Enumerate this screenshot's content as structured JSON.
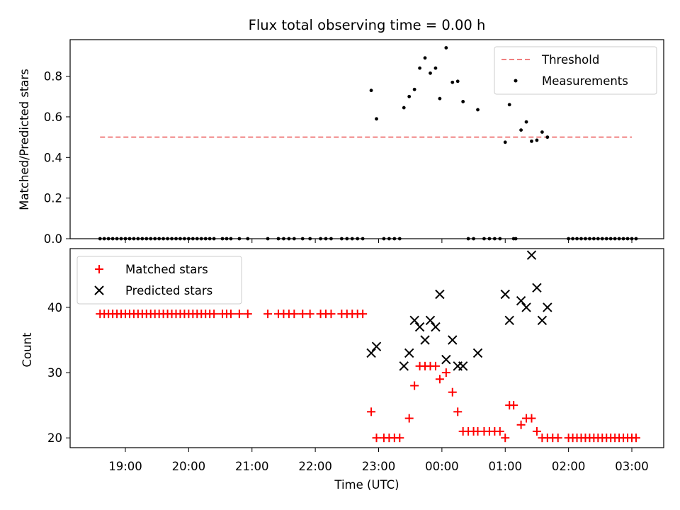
{
  "chart_data": [
    {
      "type": "scatter",
      "title": "Flux total observing time = 0.00 h",
      "xlabel": "",
      "ylabel": "Matched/Predicted stars",
      "ylim": [
        0,
        0.98
      ],
      "yticks": [
        0.0,
        0.2,
        0.4,
        0.6,
        0.8
      ],
      "ytick_labels": [
        "0.0",
        "0.2",
        "0.4",
        "0.6",
        "0.8"
      ],
      "legend_position": "top-right",
      "threshold": {
        "name": "Threshold",
        "value": 0.5,
        "x_start": "18:36",
        "x_end": "03:00",
        "color": "#f08080"
      },
      "measurements": {
        "name": "Measurements",
        "color": "#000000",
        "points": [
          [
            "18:36",
            0
          ],
          [
            "18:40",
            0
          ],
          [
            "18:44",
            0
          ],
          [
            "18:48",
            0
          ],
          [
            "18:52",
            0
          ],
          [
            "18:56",
            0
          ],
          [
            "19:00",
            0
          ],
          [
            "19:04",
            0
          ],
          [
            "19:08",
            0
          ],
          [
            "19:12",
            0
          ],
          [
            "19:16",
            0
          ],
          [
            "19:20",
            0
          ],
          [
            "19:24",
            0
          ],
          [
            "19:28",
            0
          ],
          [
            "19:32",
            0
          ],
          [
            "19:36",
            0
          ],
          [
            "19:40",
            0
          ],
          [
            "19:44",
            0
          ],
          [
            "19:48",
            0
          ],
          [
            "19:52",
            0
          ],
          [
            "19:56",
            0
          ],
          [
            "20:00",
            0
          ],
          [
            "20:04",
            0
          ],
          [
            "20:08",
            0
          ],
          [
            "20:12",
            0
          ],
          [
            "20:16",
            0
          ],
          [
            "20:20",
            0
          ],
          [
            "20:24",
            0
          ],
          [
            "20:32",
            0
          ],
          [
            "20:36",
            0
          ],
          [
            "20:40",
            0
          ],
          [
            "20:48",
            0
          ],
          [
            "20:56",
            0
          ],
          [
            "21:15",
            0
          ],
          [
            "21:25",
            0
          ],
          [
            "21:30",
            0
          ],
          [
            "21:35",
            0
          ],
          [
            "21:40",
            0
          ],
          [
            "21:48",
            0
          ],
          [
            "21:55",
            0
          ],
          [
            "22:05",
            0
          ],
          [
            "22:10",
            0
          ],
          [
            "22:15",
            0
          ],
          [
            "22:25",
            0
          ],
          [
            "22:30",
            0
          ],
          [
            "22:35",
            0
          ],
          [
            "22:40",
            0
          ],
          [
            "22:45",
            0
          ],
          [
            "22:53",
            0.73
          ],
          [
            "22:58",
            0.59
          ],
          [
            "23:05",
            0
          ],
          [
            "23:10",
            0
          ],
          [
            "23:15",
            0
          ],
          [
            "23:20",
            0
          ],
          [
            "23:24",
            0.645
          ],
          [
            "23:29",
            0.7
          ],
          [
            "23:34",
            0.735
          ],
          [
            "23:39",
            0.84
          ],
          [
            "23:44",
            0.89
          ],
          [
            "23:49",
            0.815
          ],
          [
            "23:54",
            0.84
          ],
          [
            "23:58",
            0.69
          ],
          [
            "00:04",
            0.94
          ],
          [
            "00:10",
            0.77
          ],
          [
            "00:15",
            0.775
          ],
          [
            "00:20",
            0.675
          ],
          [
            "00:25",
            0
          ],
          [
            "00:30",
            0
          ],
          [
            "00:34",
            0.635
          ],
          [
            "00:40",
            0
          ],
          [
            "00:45",
            0
          ],
          [
            "00:50",
            0
          ],
          [
            "00:55",
            0
          ],
          [
            "01:00",
            0.475
          ],
          [
            "01:04",
            0.66
          ],
          [
            "01:08",
            0
          ],
          [
            "01:10",
            0
          ],
          [
            "01:15",
            0.535
          ],
          [
            "01:20",
            0.575
          ],
          [
            "01:25",
            0.48
          ],
          [
            "01:30",
            0.485
          ],
          [
            "01:35",
            0.525
          ],
          [
            "01:40",
            0.5
          ],
          [
            "02:00",
            0
          ],
          [
            "02:04",
            0
          ],
          [
            "02:08",
            0
          ],
          [
            "02:12",
            0
          ],
          [
            "02:16",
            0
          ],
          [
            "02:20",
            0
          ],
          [
            "02:24",
            0
          ],
          [
            "02:28",
            0
          ],
          [
            "02:32",
            0
          ],
          [
            "02:36",
            0
          ],
          [
            "02:40",
            0
          ],
          [
            "02:44",
            0
          ],
          [
            "02:48",
            0
          ],
          [
            "02:52",
            0
          ],
          [
            "02:56",
            0
          ],
          [
            "03:00",
            0
          ],
          [
            "03:04",
            0
          ]
        ]
      }
    },
    {
      "type": "scatter",
      "title": "",
      "xlabel": "Time (UTC)",
      "ylabel": "Count",
      "ylim": [
        18.5,
        49
      ],
      "yticks": [
        20,
        30,
        40
      ],
      "ytick_labels": [
        "20",
        "30",
        "40"
      ],
      "xtick_labels": [
        "19:00",
        "20:00",
        "21:00",
        "22:00",
        "23:00",
        "00:00",
        "01:00",
        "02:00",
        "03:00"
      ],
      "legend_position": "top-left",
      "series": [
        {
          "name": "Matched stars",
          "marker": "plus",
          "color": "#ff0000",
          "points": [
            [
              "18:36",
              39
            ],
            [
              "18:40",
              39
            ],
            [
              "18:44",
              39
            ],
            [
              "18:48",
              39
            ],
            [
              "18:52",
              39
            ],
            [
              "18:56",
              39
            ],
            [
              "19:00",
              39
            ],
            [
              "19:04",
              39
            ],
            [
              "19:08",
              39
            ],
            [
              "19:12",
              39
            ],
            [
              "19:16",
              39
            ],
            [
              "19:20",
              39
            ],
            [
              "19:24",
              39
            ],
            [
              "19:28",
              39
            ],
            [
              "19:32",
              39
            ],
            [
              "19:36",
              39
            ],
            [
              "19:40",
              39
            ],
            [
              "19:44",
              39
            ],
            [
              "19:48",
              39
            ],
            [
              "19:52",
              39
            ],
            [
              "19:56",
              39
            ],
            [
              "20:00",
              39
            ],
            [
              "20:04",
              39
            ],
            [
              "20:08",
              39
            ],
            [
              "20:12",
              39
            ],
            [
              "20:16",
              39
            ],
            [
              "20:20",
              39
            ],
            [
              "20:24",
              39
            ],
            [
              "20:32",
              39
            ],
            [
              "20:36",
              39
            ],
            [
              "20:40",
              39
            ],
            [
              "20:48",
              39
            ],
            [
              "20:56",
              39
            ],
            [
              "21:15",
              39
            ],
            [
              "21:25",
              39
            ],
            [
              "21:30",
              39
            ],
            [
              "21:35",
              39
            ],
            [
              "21:40",
              39
            ],
            [
              "21:48",
              39
            ],
            [
              "21:55",
              39
            ],
            [
              "22:05",
              39
            ],
            [
              "22:10",
              39
            ],
            [
              "22:15",
              39
            ],
            [
              "22:25",
              39
            ],
            [
              "22:30",
              39
            ],
            [
              "22:35",
              39
            ],
            [
              "22:40",
              39
            ],
            [
              "22:45",
              39
            ],
            [
              "22:53",
              24
            ],
            [
              "22:58",
              20
            ],
            [
              "23:05",
              20
            ],
            [
              "23:10",
              20
            ],
            [
              "23:15",
              20
            ],
            [
              "23:20",
              20
            ],
            [
              "23:29",
              23
            ],
            [
              "23:34",
              28
            ],
            [
              "23:39",
              31
            ],
            [
              "23:44",
              31
            ],
            [
              "23:49",
              31
            ],
            [
              "23:54",
              31
            ],
            [
              "23:58",
              29
            ],
            [
              "00:04",
              30
            ],
            [
              "00:10",
              27
            ],
            [
              "00:15",
              24
            ],
            [
              "00:20",
              21
            ],
            [
              "00:25",
              21
            ],
            [
              "00:30",
              21
            ],
            [
              "00:34",
              21
            ],
            [
              "00:40",
              21
            ],
            [
              "00:45",
              21
            ],
            [
              "00:50",
              21
            ],
            [
              "00:55",
              21
            ],
            [
              "01:00",
              20
            ],
            [
              "01:04",
              25
            ],
            [
              "01:08",
              25
            ],
            [
              "01:15",
              22
            ],
            [
              "01:20",
              23
            ],
            [
              "01:25",
              23
            ],
            [
              "01:30",
              21
            ],
            [
              "01:35",
              20
            ],
            [
              "01:40",
              20
            ],
            [
              "01:45",
              20
            ],
            [
              "01:50",
              20
            ],
            [
              "02:00",
              20
            ],
            [
              "02:04",
              20
            ],
            [
              "02:08",
              20
            ],
            [
              "02:12",
              20
            ],
            [
              "02:16",
              20
            ],
            [
              "02:20",
              20
            ],
            [
              "02:24",
              20
            ],
            [
              "02:28",
              20
            ],
            [
              "02:32",
              20
            ],
            [
              "02:36",
              20
            ],
            [
              "02:40",
              20
            ],
            [
              "02:44",
              20
            ],
            [
              "02:48",
              20
            ],
            [
              "02:52",
              20
            ],
            [
              "02:56",
              20
            ],
            [
              "03:00",
              20
            ],
            [
              "03:04",
              20
            ]
          ]
        },
        {
          "name": "Predicted stars",
          "marker": "x",
          "color": "#000000",
          "points": [
            [
              "22:53",
              33
            ],
            [
              "22:58",
              34
            ],
            [
              "23:24",
              31
            ],
            [
              "23:29",
              33
            ],
            [
              "23:34",
              38
            ],
            [
              "23:39",
              37
            ],
            [
              "23:44",
              35
            ],
            [
              "23:49",
              38
            ],
            [
              "23:54",
              37
            ],
            [
              "23:58",
              42
            ],
            [
              "00:04",
              32
            ],
            [
              "00:10",
              35
            ],
            [
              "00:15",
              31
            ],
            [
              "00:20",
              31
            ],
            [
              "00:34",
              33
            ],
            [
              "01:00",
              42
            ],
            [
              "01:04",
              38
            ],
            [
              "01:15",
              41
            ],
            [
              "01:20",
              40
            ],
            [
              "01:25",
              48
            ],
            [
              "01:30",
              43
            ],
            [
              "01:35",
              38
            ],
            [
              "01:40",
              40
            ]
          ]
        }
      ]
    }
  ]
}
